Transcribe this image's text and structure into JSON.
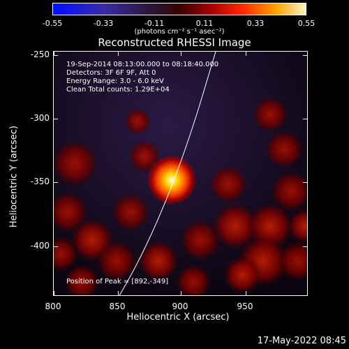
{
  "colorbar": {
    "ticks": [
      "-0.55",
      "-0.33",
      "-0.11",
      "0.11",
      "0.33",
      "0.55"
    ],
    "unit_label": "(photons cm⁻² s⁻¹ asec⁻²)",
    "colors": [
      "#0010ff",
      "#3a2aa8",
      "#2a1530",
      "#3a0000",
      "#a00000",
      "#ff2a00",
      "#ffa000",
      "#fff5c0"
    ]
  },
  "title": "Reconstructed RHESSI Image",
  "info": {
    "time_range": "19-Sep-2014 08:13:00.000 to 08:18:40.000",
    "detectors": "Detectors: 3F 6F 9F, Att 0",
    "energy": "Energy Range: 3.0 - 6.0 keV",
    "method": "Clean    Total counts: 1.29E+04",
    "peak": "Position of Peak = [892,-349]"
  },
  "axes": {
    "x_label": "Heliocentric X (arcsec)",
    "y_label": "Heliocentric Y (arcsec)",
    "x_ticks": [
      "800",
      "850",
      "900",
      "950"
    ],
    "y_ticks": [
      "-250",
      "-300",
      "-350",
      "-400"
    ],
    "x_range": [
      800,
      990
    ],
    "y_range": [
      -440,
      -247
    ]
  },
  "peak_position": [
    892,
    -349
  ],
  "timestamp": "17-May-2022 08:45"
}
